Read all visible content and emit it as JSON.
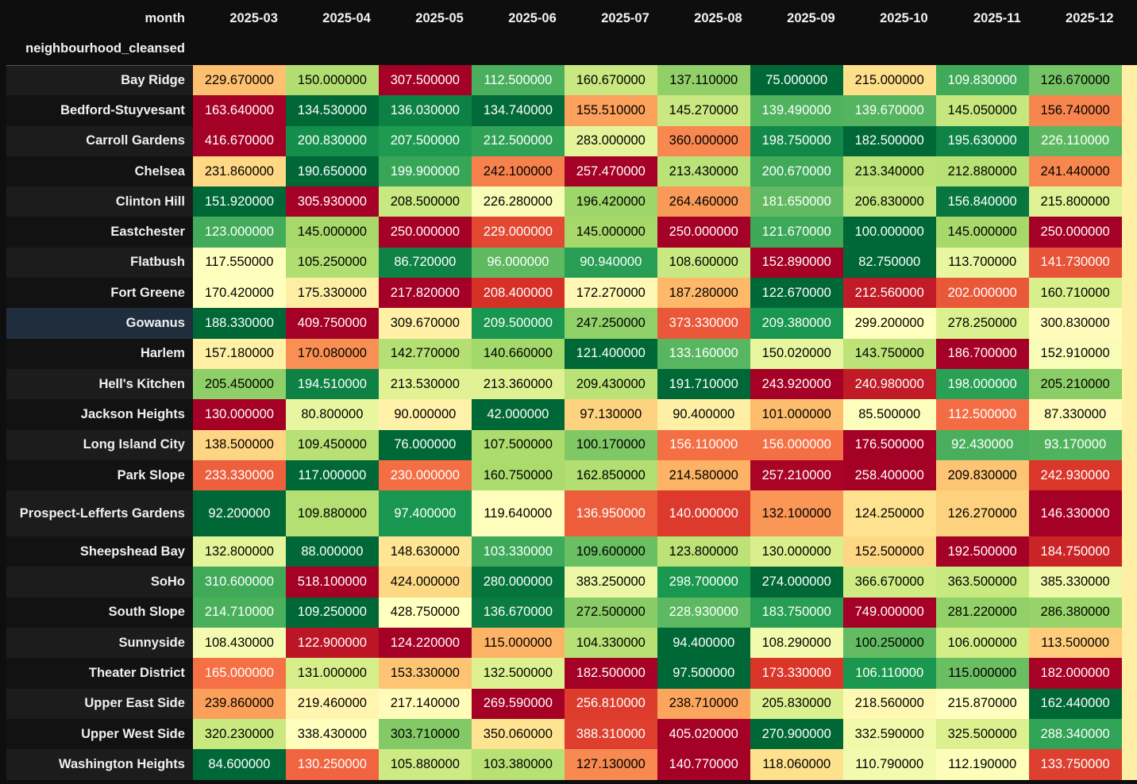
{
  "table": {
    "columns_axis_label": "month",
    "index_label": "neighbourhood_cleansed",
    "months": [
      "2025-03",
      "2025-04",
      "2025-05",
      "2025-06",
      "2025-07",
      "2025-08",
      "2025-09",
      "2025-10",
      "2025-11",
      "2025-12"
    ],
    "highlighted_row": "Gowanus",
    "colormap": "RdYlGn (reversed, per row)",
    "colors": {
      "high": "#a50026",
      "mid": "#ffffbf",
      "low": "#006837",
      "background": "#0e0e0e",
      "row_header_odd": "#1c1c1c",
      "row_header_even": "#121212",
      "row_header_hover": "#1f2d3d"
    },
    "rows": [
      {
        "name": "Bay Ridge",
        "values": [
          "229.670000",
          "150.000000",
          "307.500000",
          "112.500000",
          "160.670000",
          "137.110000",
          "75.000000",
          "215.000000",
          "109.830000",
          "126.670000"
        ]
      },
      {
        "name": "Bedford-Stuyvesant",
        "values": [
          "163.640000",
          "134.530000",
          "136.030000",
          "134.740000",
          "155.510000",
          "145.270000",
          "139.490000",
          "139.670000",
          "145.050000",
          "156.740000"
        ]
      },
      {
        "name": "Carroll Gardens",
        "values": [
          "416.670000",
          "200.830000",
          "207.500000",
          "212.500000",
          "283.000000",
          "360.000000",
          "198.750000",
          "182.500000",
          "195.630000",
          "226.110000"
        ]
      },
      {
        "name": "Chelsea",
        "values": [
          "231.860000",
          "190.650000",
          "199.900000",
          "242.100000",
          "257.470000",
          "213.430000",
          "200.670000",
          "213.340000",
          "212.880000",
          "241.440000"
        ]
      },
      {
        "name": "Clinton Hill",
        "values": [
          "151.920000",
          "305.930000",
          "208.500000",
          "226.280000",
          "196.420000",
          "264.460000",
          "181.650000",
          "206.830000",
          "156.840000",
          "215.800000"
        ]
      },
      {
        "name": "Eastchester",
        "values": [
          "123.000000",
          "145.000000",
          "250.000000",
          "229.000000",
          "145.000000",
          "250.000000",
          "121.670000",
          "100.000000",
          "145.000000",
          "250.000000"
        ]
      },
      {
        "name": "Flatbush",
        "values": [
          "117.550000",
          "105.250000",
          "86.720000",
          "96.000000",
          "90.940000",
          "108.600000",
          "152.890000",
          "82.750000",
          "113.700000",
          "141.730000"
        ]
      },
      {
        "name": "Fort Greene",
        "values": [
          "170.420000",
          "175.330000",
          "217.820000",
          "208.400000",
          "172.270000",
          "187.280000",
          "122.670000",
          "212.560000",
          "202.000000",
          "160.710000"
        ]
      },
      {
        "name": "Gowanus",
        "values": [
          "188.330000",
          "409.750000",
          "309.670000",
          "209.500000",
          "247.250000",
          "373.330000",
          "209.380000",
          "299.200000",
          "278.250000",
          "300.830000"
        ]
      },
      {
        "name": "Harlem",
        "values": [
          "157.180000",
          "170.080000",
          "142.770000",
          "140.660000",
          "121.400000",
          "133.160000",
          "150.020000",
          "143.750000",
          "186.700000",
          "152.910000"
        ]
      },
      {
        "name": "Hell's Kitchen",
        "values": [
          "205.450000",
          "194.510000",
          "213.530000",
          "213.360000",
          "209.430000",
          "191.710000",
          "243.920000",
          "240.980000",
          "198.000000",
          "205.210000"
        ]
      },
      {
        "name": "Jackson Heights",
        "values": [
          "130.000000",
          "80.800000",
          "90.000000",
          "42.000000",
          "97.130000",
          "90.400000",
          "101.000000",
          "85.500000",
          "112.500000",
          "87.330000"
        ]
      },
      {
        "name": "Long Island City",
        "values": [
          "138.500000",
          "109.450000",
          "76.000000",
          "107.500000",
          "100.170000",
          "156.110000",
          "156.000000",
          "176.500000",
          "92.430000",
          "93.170000"
        ]
      },
      {
        "name": "Park Slope",
        "values": [
          "233.330000",
          "117.000000",
          "230.000000",
          "160.750000",
          "162.850000",
          "214.580000",
          "257.210000",
          "258.400000",
          "209.830000",
          "242.930000"
        ]
      },
      {
        "name": "Prospect-Lefferts Gardens",
        "values": [
          "92.200000",
          "109.880000",
          "97.400000",
          "119.640000",
          "136.950000",
          "140.000000",
          "132.100000",
          "124.250000",
          "126.270000",
          "146.330000"
        ]
      },
      {
        "name": "Sheepshead Bay",
        "values": [
          "132.800000",
          "88.000000",
          "148.630000",
          "103.330000",
          "109.600000",
          "123.800000",
          "130.000000",
          "152.500000",
          "192.500000",
          "184.750000"
        ]
      },
      {
        "name": "SoHo",
        "values": [
          "310.600000",
          "518.100000",
          "424.000000",
          "280.000000",
          "383.250000",
          "298.700000",
          "274.000000",
          "366.670000",
          "363.500000",
          "385.330000"
        ]
      },
      {
        "name": "South Slope",
        "values": [
          "214.710000",
          "109.250000",
          "428.750000",
          "136.670000",
          "272.500000",
          "228.930000",
          "183.750000",
          "749.000000",
          "281.220000",
          "286.380000"
        ]
      },
      {
        "name": "Sunnyside",
        "values": [
          "108.430000",
          "122.900000",
          "124.220000",
          "115.000000",
          "104.330000",
          "94.400000",
          "108.290000",
          "100.250000",
          "106.000000",
          "113.500000"
        ]
      },
      {
        "name": "Theater District",
        "values": [
          "165.000000",
          "131.000000",
          "153.330000",
          "132.500000",
          "182.500000",
          "97.500000",
          "173.330000",
          "106.110000",
          "115.000000",
          "182.000000"
        ]
      },
      {
        "name": "Upper East Side",
        "values": [
          "239.860000",
          "219.460000",
          "217.140000",
          "269.590000",
          "256.810000",
          "238.710000",
          "205.830000",
          "218.560000",
          "215.870000",
          "162.440000"
        ]
      },
      {
        "name": "Upper West Side",
        "values": [
          "320.230000",
          "338.430000",
          "303.710000",
          "350.060000",
          "388.310000",
          "405.020000",
          "270.900000",
          "332.590000",
          "325.500000",
          "288.340000"
        ]
      },
      {
        "name": "Washington Heights",
        "values": [
          "84.600000",
          "130.250000",
          "105.880000",
          "103.380000",
          "127.130000",
          "140.770000",
          "118.060000",
          "110.790000",
          "112.190000",
          "133.750000"
        ]
      }
    ]
  }
}
